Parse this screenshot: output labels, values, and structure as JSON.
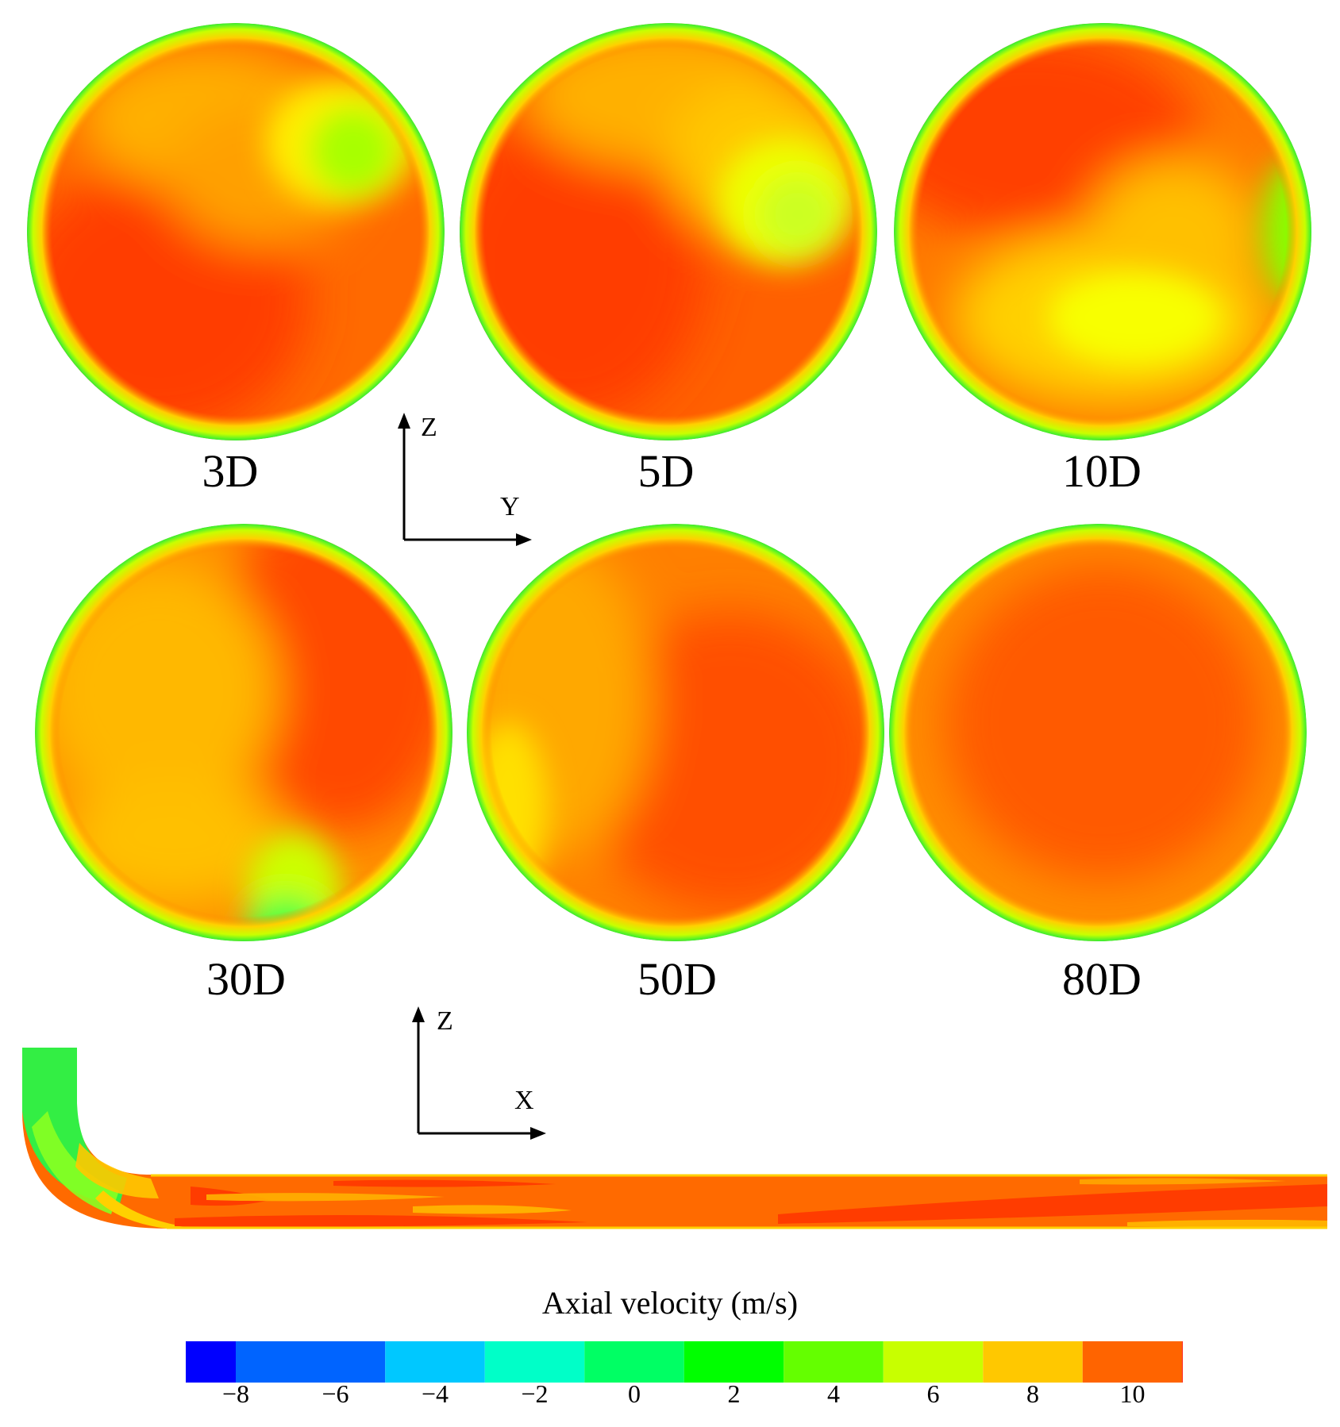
{
  "cross_sections": [
    {
      "label": "3D"
    },
    {
      "label": "5D"
    },
    {
      "label": "10D"
    },
    {
      "label": "30D"
    },
    {
      "label": "50D"
    },
    {
      "label": "80D"
    }
  ],
  "axes_top": {
    "vertical": "Z",
    "horizontal": "Y"
  },
  "axes_bottom": {
    "vertical": "Z",
    "horizontal": "X"
  },
  "legend": {
    "title": "Axial velocity (m/s)",
    "ticks": [
      "−8",
      "−6",
      "−4",
      "−2",
      "0",
      "2",
      "4",
      "6",
      "8",
      "10"
    ],
    "colors": [
      "#0000ff",
      "#0064ff",
      "#00c8ff",
      "#00ffc8",
      "#00ff64",
      "#00ff00",
      "#64ff00",
      "#c8ff00",
      "#ffc800",
      "#ff6400",
      "#ff0000"
    ]
  }
}
